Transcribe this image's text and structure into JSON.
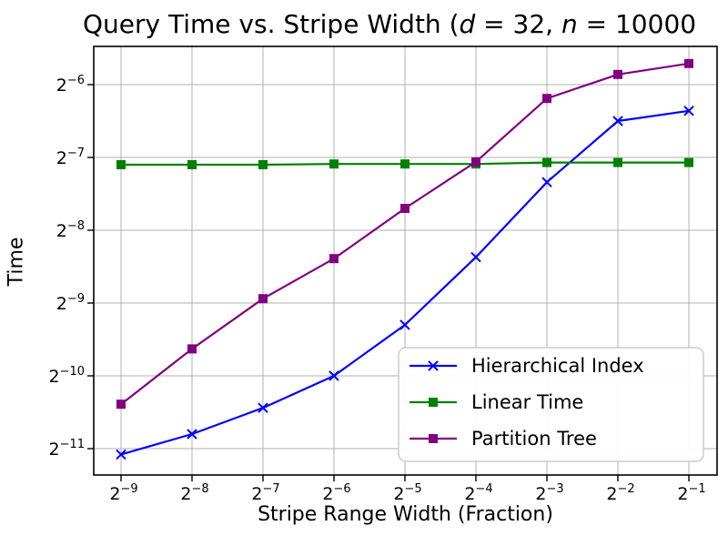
{
  "figure": {
    "title": {
      "prefix": "Query Time vs. Stripe Width (",
      "var_d": "d",
      "mid": " = 32, ",
      "var_n": "n",
      "suffix": " = 10000"
    },
    "xlabel": "Stripe Range Width (Fraction)",
    "ylabel": "Time"
  },
  "chart_data": {
    "type": "line",
    "title": "Query Time vs. Stripe Width (d = 32, n = 10000",
    "xlabel": "Stripe Range Width (Fraction)",
    "ylabel": "Time",
    "x_scale": "log2",
    "y_scale": "log2",
    "grid": true,
    "legend_position": "lower right",
    "x_ticklabels": [
      "2⁻⁹",
      "2⁻⁸",
      "2⁻⁷",
      "2⁻⁶",
      "2⁻⁵",
      "2⁻⁴",
      "2⁻³",
      "2⁻²",
      "2⁻¹"
    ],
    "y_ticklabels": [
      "2⁻⁶",
      "2⁻⁷",
      "2⁻⁸",
      "2⁻⁹",
      "2⁻¹⁰",
      "2⁻¹¹"
    ],
    "x_exponents": [
      -9,
      -8,
      -7,
      -6,
      -5,
      -4,
      -3,
      -2,
      -1
    ],
    "y_tick_exponents": [
      -6,
      -7,
      -8,
      -9,
      -10,
      -11
    ],
    "xlim_log2": [
      -9.39,
      -0.6
    ],
    "ylim_log2": [
      -11.36,
      -5.47
    ],
    "grid_color": "#b0b0b0",
    "axis_color": "#000000",
    "series": [
      {
        "name": "Hierarchical Index",
        "color": "#0000ff",
        "marker": "x",
        "log2_y": [
          -11.08,
          -10.8,
          -10.44,
          -10.0,
          -9.3,
          -8.37,
          -7.34,
          -6.5,
          -6.36
        ]
      },
      {
        "name": "Linear Time",
        "color": "#008000",
        "marker": "square",
        "log2_y": [
          -7.1,
          -7.1,
          -7.1,
          -7.09,
          -7.09,
          -7.09,
          -7.07,
          -7.07,
          -7.07
        ]
      },
      {
        "name": "Partition Tree",
        "color": "#800080",
        "marker": "square",
        "log2_y": [
          -10.39,
          -9.63,
          -8.94,
          -8.39,
          -7.7,
          -7.06,
          -6.19,
          -5.86,
          -5.71
        ]
      }
    ]
  }
}
